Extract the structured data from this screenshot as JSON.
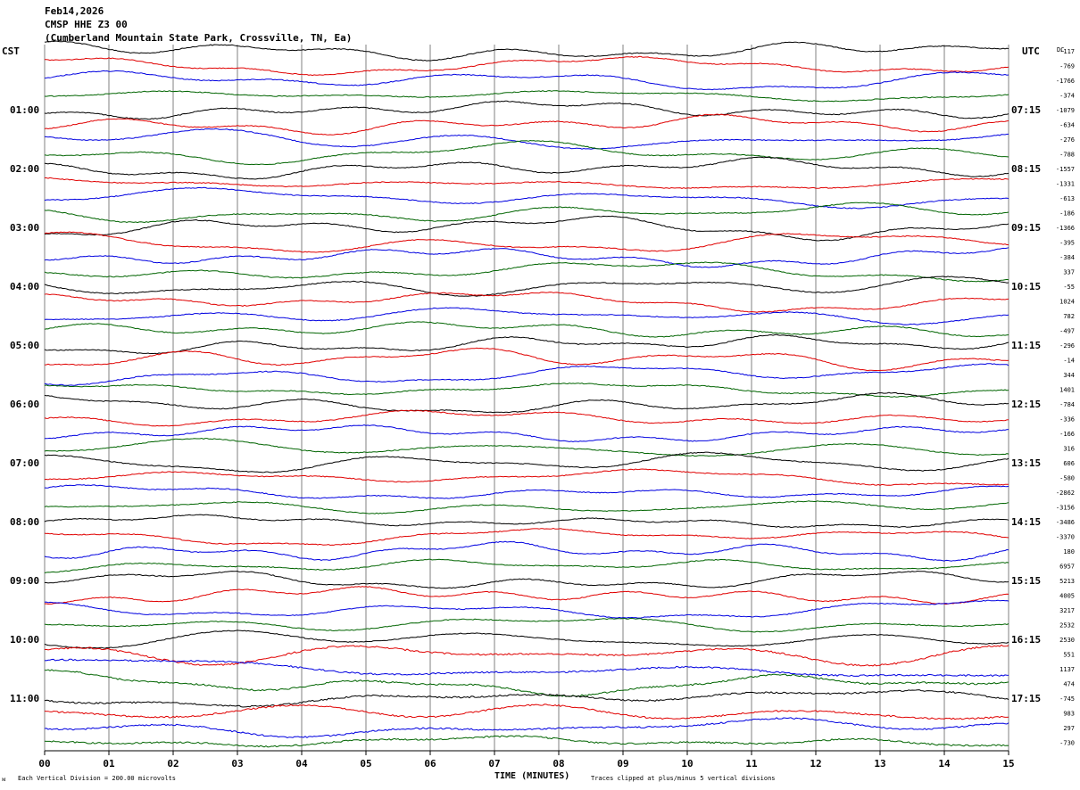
{
  "header": {
    "date": "Feb14,2026",
    "station": "CMSP HHE Z3 00",
    "location": "(Cumberland Mountain State Park, Crossville, TN, Ea)"
  },
  "left_zone_label": "CST",
  "right_zone_label": "UTC",
  "dc_header": "DC",
  "footer": {
    "scale_note": "Each Vertical Division =  200.00 microvolts",
    "clip_note": "Traces clipped at plus/minus 5 vertical divisions",
    "corner_mark": "ᴍ"
  },
  "chart_data": {
    "type": "line",
    "title": "CMSP HHE Z3 00",
    "xlabel": "TIME (MINUTES)",
    "ylabel": "",
    "xlim": [
      0,
      15
    ],
    "x_ticks": [
      "00",
      "01",
      "02",
      "03",
      "04",
      "05",
      "06",
      "07",
      "08",
      "09",
      "10",
      "11",
      "12",
      "13",
      "14",
      "15"
    ],
    "rows_per_hour": 4,
    "row_minutes": 15,
    "row_colors": [
      "#000000",
      "#e00000",
      "#0000e0",
      "#006400"
    ],
    "left_time_labels": [
      "01:00",
      "02:00",
      "03:00",
      "04:00",
      "05:00",
      "06:00",
      "07:00",
      "08:00",
      "09:00",
      "10:00",
      "11:00"
    ],
    "right_time_labels": [
      "07:15",
      "08:15",
      "09:15",
      "10:15",
      "11:15",
      "12:15",
      "13:15",
      "14:15",
      "15:15",
      "16:15",
      "17:15"
    ],
    "dc_offsets": [
      "-117",
      "-769",
      "-1766",
      "-374",
      "-1079",
      "-634",
      "-276",
      "-788",
      "-1557",
      "-1331",
      "-613",
      "-186",
      "-1366",
      "-395",
      "-384",
      "337",
      "-55",
      "1024",
      "782",
      "-497",
      "-296",
      "-14",
      "344",
      "1401",
      "-784",
      "-336",
      "-166",
      "316",
      "606",
      "-580",
      "-2862",
      "-3156",
      "-3486",
      "-3370",
      "180",
      "6957",
      "5213",
      "4005",
      "3217",
      "2532",
      "2530",
      "551",
      "1137",
      "474",
      "-745",
      "983",
      "297",
      "-730"
    ],
    "grid": "vertical-minute-lines",
    "clip_divisions": 5,
    "microvolts_per_division": 200.0
  }
}
